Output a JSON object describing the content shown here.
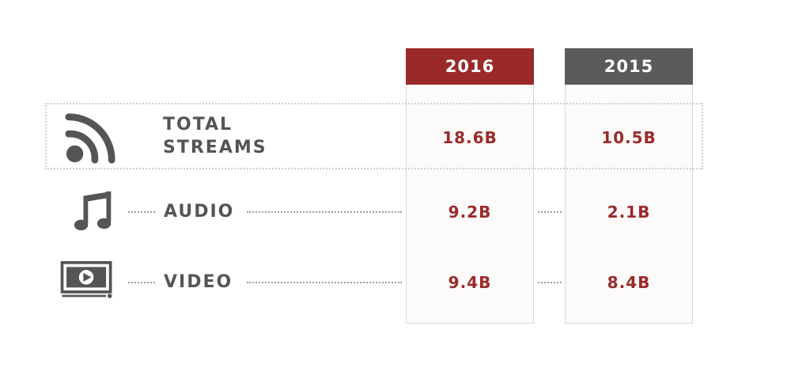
{
  "chart_data": {
    "type": "table",
    "columns": [
      "2016",
      "2015"
    ],
    "header_colors": [
      "#9a2a2a",
      "#5a5a5a"
    ],
    "value_color": "#9a2a2a",
    "rows": [
      {
        "icon": "rss-icon",
        "label_lines": [
          "TOTAL",
          "STREAMS"
        ],
        "values": [
          "18.6B",
          "10.5B"
        ]
      },
      {
        "icon": "music-note-icon",
        "label_lines": [
          "AUDIO"
        ],
        "values": [
          "9.2B",
          "2.1B"
        ]
      },
      {
        "icon": "monitor-play-icon",
        "label_lines": [
          "VIDEO"
        ],
        "values": [
          "9.4B",
          "8.4B"
        ]
      }
    ]
  }
}
